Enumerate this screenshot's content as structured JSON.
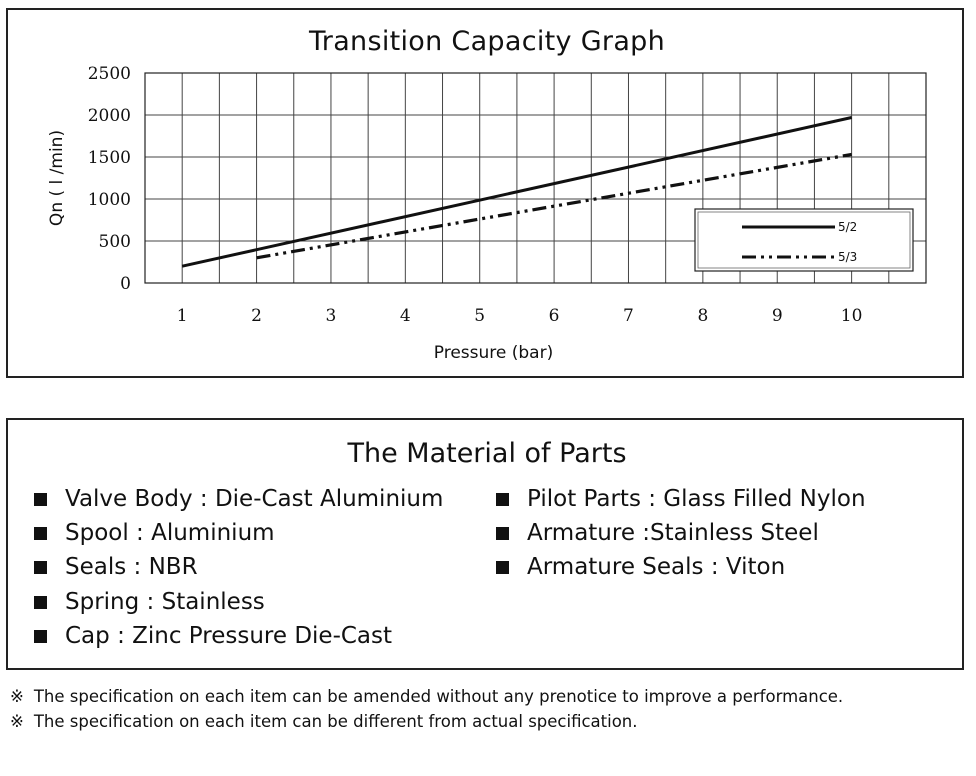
{
  "chart_data": {
    "type": "line",
    "title": "Transition Capacity Graph",
    "xlabel": "Pressure (bar)",
    "ylabel": "Qn ( l /min)",
    "x_ticks": [
      1,
      2,
      3,
      4,
      5,
      6,
      7,
      8,
      9,
      10
    ],
    "y_ticks": [
      0,
      500,
      1000,
      1500,
      2000,
      2500
    ],
    "xlim": [
      0.5,
      11
    ],
    "ylim": [
      0,
      2500
    ],
    "grid": true,
    "legend_position": "lower-right",
    "series": [
      {
        "name": "5/2",
        "style": "solid",
        "x": [
          1,
          10
        ],
        "y": [
          200,
          1970
        ]
      },
      {
        "name": "5/3",
        "style": "dash-dot-dot",
        "x": [
          2,
          10
        ],
        "y": [
          300,
          1530
        ]
      }
    ]
  },
  "materials": {
    "title": "The Material of Parts",
    "left": [
      "Valve Body : Die-Cast Aluminium",
      "Spool : Aluminium",
      "Seals : NBR",
      "Spring : Stainless",
      "Cap : Zinc Pressure Die-Cast"
    ],
    "right": [
      "Pilot Parts : Glass Filled Nylon",
      "Armature :Stainless Steel",
      "Armature Seals : Viton"
    ]
  },
  "notes": {
    "mark": "※",
    "lines": [
      "The specification on each item can be amended without any prenotice to improve a performance.",
      "The specification on each item can be different from actual specification."
    ]
  }
}
